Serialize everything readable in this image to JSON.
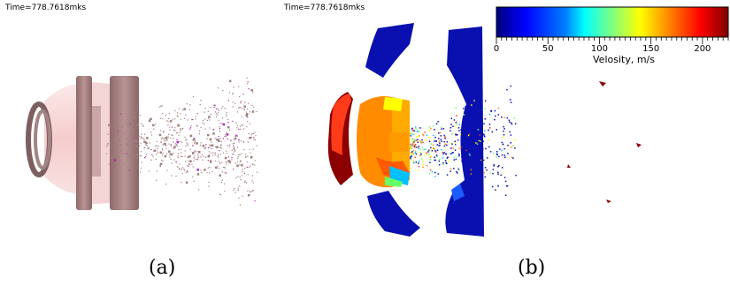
{
  "panel_a": {
    "time_label": "Time=778.7618mks",
    "caption": "(a)"
  },
  "panel_b": {
    "time_label": "Time=778.7618mks",
    "caption": "(b)",
    "colorbar": {
      "label": "Velosity, m/s",
      "ticks": [
        "0",
        "50",
        "100",
        "150",
        "200"
      ],
      "tick_values": [
        0,
        50,
        100,
        150,
        200
      ],
      "range": [
        0,
        225
      ],
      "colors": [
        "#00007f",
        "#0000ff",
        "#0080ff",
        "#00ffff",
        "#80ff80",
        "#ffff00",
        "#ff8000",
        "#ff0000",
        "#7f0000"
      ]
    }
  },
  "colors": {
    "fragment_pink": "#b99a9a",
    "shell_pink": "#f7d6d6",
    "disk_brown": "#a98585",
    "magenta_spots": "#b020b0",
    "dark_red": "#8b0000",
    "orange": "#ff8c00",
    "blue": "#0a10b0"
  }
}
